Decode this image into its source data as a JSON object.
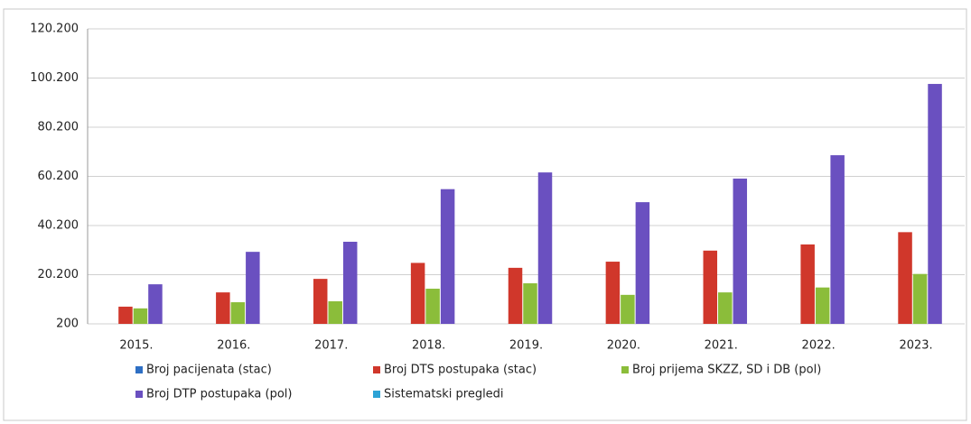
{
  "chart_data": {
    "type": "bar",
    "categories": [
      "2015.",
      "2016.",
      "2017.",
      "2018.",
      "2019.",
      "2020.",
      "2021.",
      "2022.",
      "2023."
    ],
    "series": [
      {
        "name": "Broj pacijenata (stac)",
        "color": "#2e6fc4",
        "values": [
          null,
          null,
          null,
          null,
          null,
          null,
          null,
          null,
          null
        ]
      },
      {
        "name": "Broj DTS postupaka (stac)",
        "color": "#d0372b",
        "values": [
          7200,
          13000,
          18500,
          25000,
          23000,
          25500,
          30000,
          32500,
          37500
        ]
      },
      {
        "name": "Broj prijema SKZZ, SD i DB (pol)",
        "color": "#8bbd3a",
        "values": [
          6500,
          9000,
          9400,
          14500,
          16700,
          12000,
          13000,
          15000,
          20500
        ]
      },
      {
        "name": "Broj DTP postupaka (pol)",
        "color": "#6a50c0",
        "values": [
          16300,
          29500,
          33600,
          55000,
          61800,
          49700,
          59300,
          68800,
          97800
        ]
      },
      {
        "name": "Sistematski pregledi",
        "color": "#2da3d6",
        "values": [
          null,
          null,
          null,
          null,
          null,
          null,
          null,
          null,
          null
        ]
      }
    ],
    "ylim": [
      200,
      120200
    ],
    "yticks": [
      200,
      {
        "value": 20200,
        "label": "20.200"
      },
      {
        "value": 40200,
        "label": "40.200"
      },
      {
        "value": 60200,
        "label": "60.200"
      },
      {
        "value": 80200,
        "label": "80.200"
      },
      {
        "value": 100200,
        "label": "100.200"
      },
      {
        "value": 120200,
        "label": "120.200"
      }
    ],
    "grid": true
  }
}
